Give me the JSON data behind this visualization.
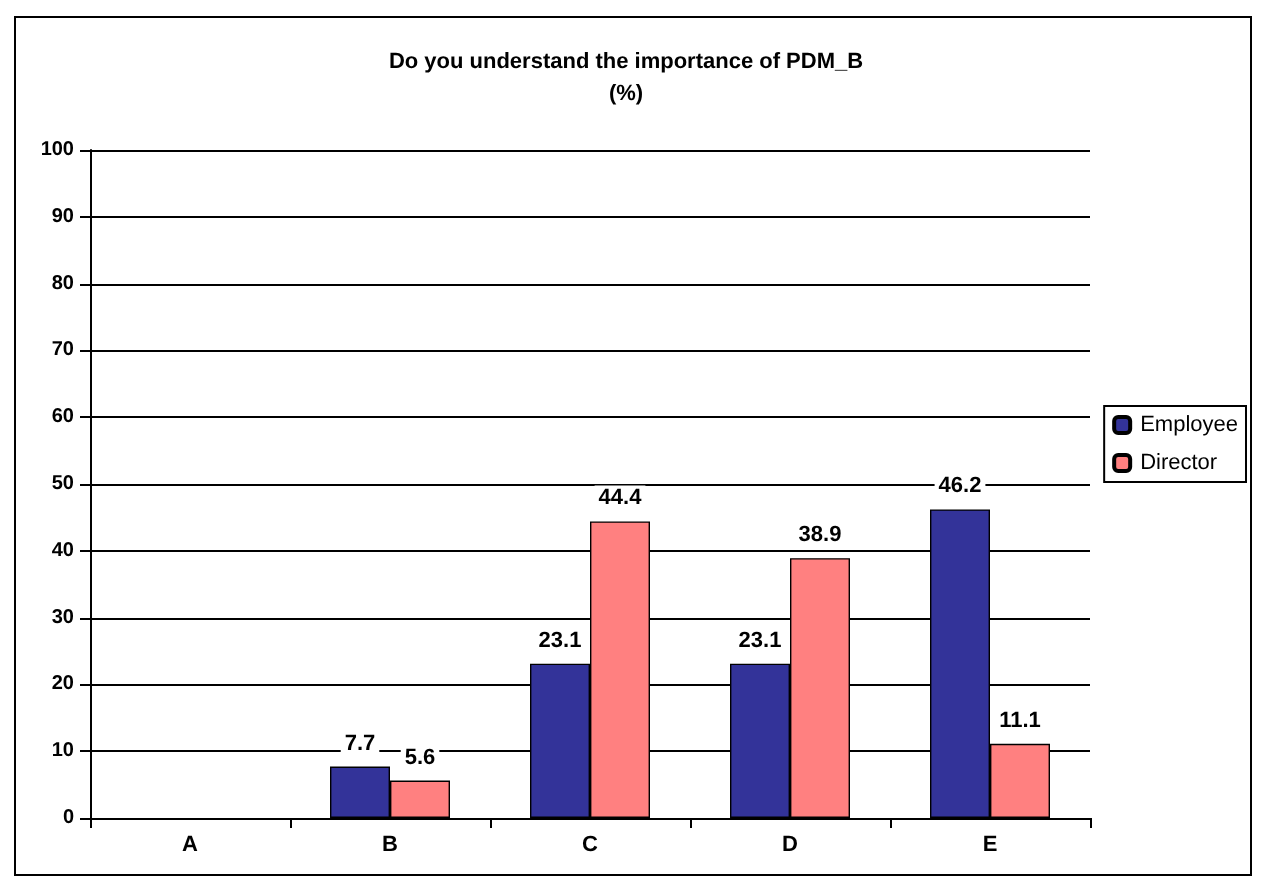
{
  "chart_data": {
    "type": "bar",
    "title": "Do you understand the importance of PDM_B\n(%)",
    "categories": [
      "A",
      "B",
      "C",
      "D",
      "E"
    ],
    "series": [
      {
        "name": "Employee",
        "color": "#333399",
        "values": [
          null,
          7.7,
          23.1,
          23.1,
          46.2
        ]
      },
      {
        "name": "Director",
        "color": "#ff8080",
        "values": [
          null,
          5.6,
          44.4,
          38.9,
          11.1
        ]
      }
    ],
    "ylim": [
      0,
      100
    ],
    "yticks": [
      0,
      10,
      20,
      30,
      40,
      50,
      60,
      70,
      80,
      90,
      100
    ],
    "grid": "y",
    "legend": "right",
    "data_labels": true
  }
}
